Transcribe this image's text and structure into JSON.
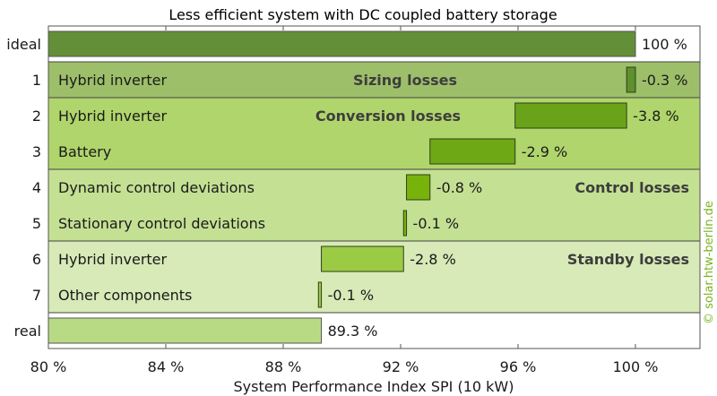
{
  "chart_data": {
    "type": "bar",
    "orientation": "horizontal-waterfall",
    "title": "Less efficient system with DC coupled battery storage",
    "xlabel": "System Performance Index SPI (10 kW)",
    "ylabel": "",
    "xlim": [
      80,
      102.2
    ],
    "xticks": [
      80,
      84,
      88,
      92,
      96,
      100
    ],
    "xtick_labels": [
      "80 %",
      "84 %",
      "88 %",
      "92 %",
      "96 %",
      "100 %"
    ],
    "grid": false,
    "watermark": "© solar.htw-berlin.de",
    "groups": [
      {
        "name": "Sizing losses",
        "rows": [
          1
        ],
        "color": "#9dbf6a"
      },
      {
        "name": "Conversion losses",
        "rows": [
          2,
          3
        ],
        "color": "#b0d56c"
      },
      {
        "name": "Control losses",
        "rows": [
          4,
          5
        ],
        "color": "#c4e093"
      },
      {
        "name": "Standby losses",
        "rows": [
          6,
          7
        ],
        "color": "#d7eab7"
      }
    ],
    "rows": [
      {
        "id": "ideal",
        "label": "",
        "start": 80,
        "end": 100,
        "value_label": "100 %",
        "color": "#628f37",
        "kind": "total"
      },
      {
        "id": "1",
        "label": "Hybrid inverter",
        "start": 99.7,
        "end": 100,
        "value": -0.3,
        "value_label": "-0.3 %",
        "color": "#5f8f2f",
        "kind": "loss"
      },
      {
        "id": "2",
        "label": "Hybrid inverter",
        "start": 95.9,
        "end": 99.7,
        "value": -3.8,
        "value_label": "-3.8 %",
        "color": "#69a31a",
        "kind": "loss"
      },
      {
        "id": "3",
        "label": "Battery",
        "start": 93.0,
        "end": 95.9,
        "value": -2.9,
        "value_label": "-2.9 %",
        "color": "#6ea815",
        "kind": "loss"
      },
      {
        "id": "4",
        "label": "Dynamic control deviations",
        "start": 92.2,
        "end": 93.0,
        "value": -0.8,
        "value_label": "-0.8 %",
        "color": "#78b30c",
        "kind": "loss"
      },
      {
        "id": "5",
        "label": "Stationary control deviations",
        "start": 92.1,
        "end": 92.2,
        "value": -0.1,
        "value_label": "-0.1 %",
        "color": "#78b30c",
        "kind": "loss"
      },
      {
        "id": "6",
        "label": "Hybrid inverter",
        "start": 89.3,
        "end": 92.1,
        "value": -2.8,
        "value_label": "-2.8 %",
        "color": "#9bcb45",
        "kind": "loss"
      },
      {
        "id": "7",
        "label": "Other components",
        "start": 89.2,
        "end": 89.3,
        "value": -0.1,
        "value_label": "-0.1 %",
        "color": "#9bcb45",
        "kind": "loss"
      },
      {
        "id": "real",
        "label": "",
        "start": 80,
        "end": 89.3,
        "value_label": "89.3 %",
        "color": "#b9da84",
        "kind": "total"
      }
    ]
  }
}
